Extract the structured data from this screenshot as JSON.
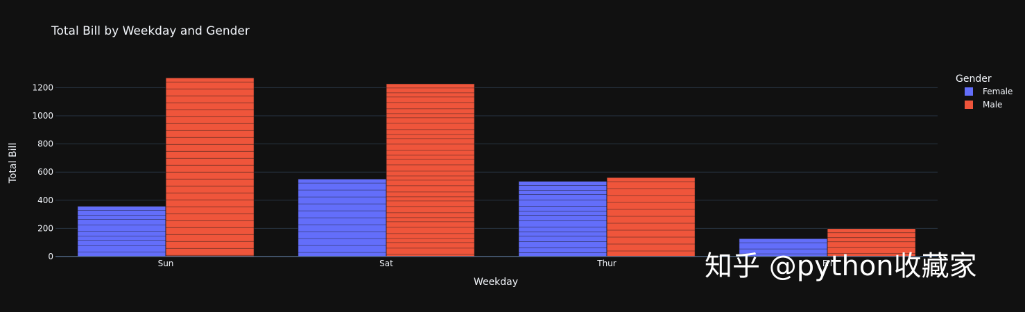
{
  "chart_data": {
    "type": "bar",
    "title": "Total Bill by Weekday and Gender",
    "xlabel": "Weekday",
    "ylabel": "Total Bill",
    "categories": [
      "Sun",
      "Sat",
      "Thur",
      "Fri"
    ],
    "series": [
      {
        "name": "Female",
        "color": "#636efa",
        "values": [
          357.7,
          551.05,
          534.89,
          127.31
        ]
      },
      {
        "name": "Male",
        "color": "#ef553b",
        "values": [
          1269.46,
          1227.35,
          561.44,
          198.57
        ]
      }
    ],
    "ylim": [
      0,
      1330
    ],
    "yticks": [
      0,
      200,
      400,
      600,
      800,
      1000,
      1200
    ],
    "grid": true,
    "barmode": "group",
    "legend": {
      "title": "Gender",
      "placement": "top-right"
    }
  },
  "watermark": "知乎 @python收藏家",
  "colors": {
    "background": "#111111",
    "grid": "#283442",
    "text": "#f2f5fa"
  }
}
